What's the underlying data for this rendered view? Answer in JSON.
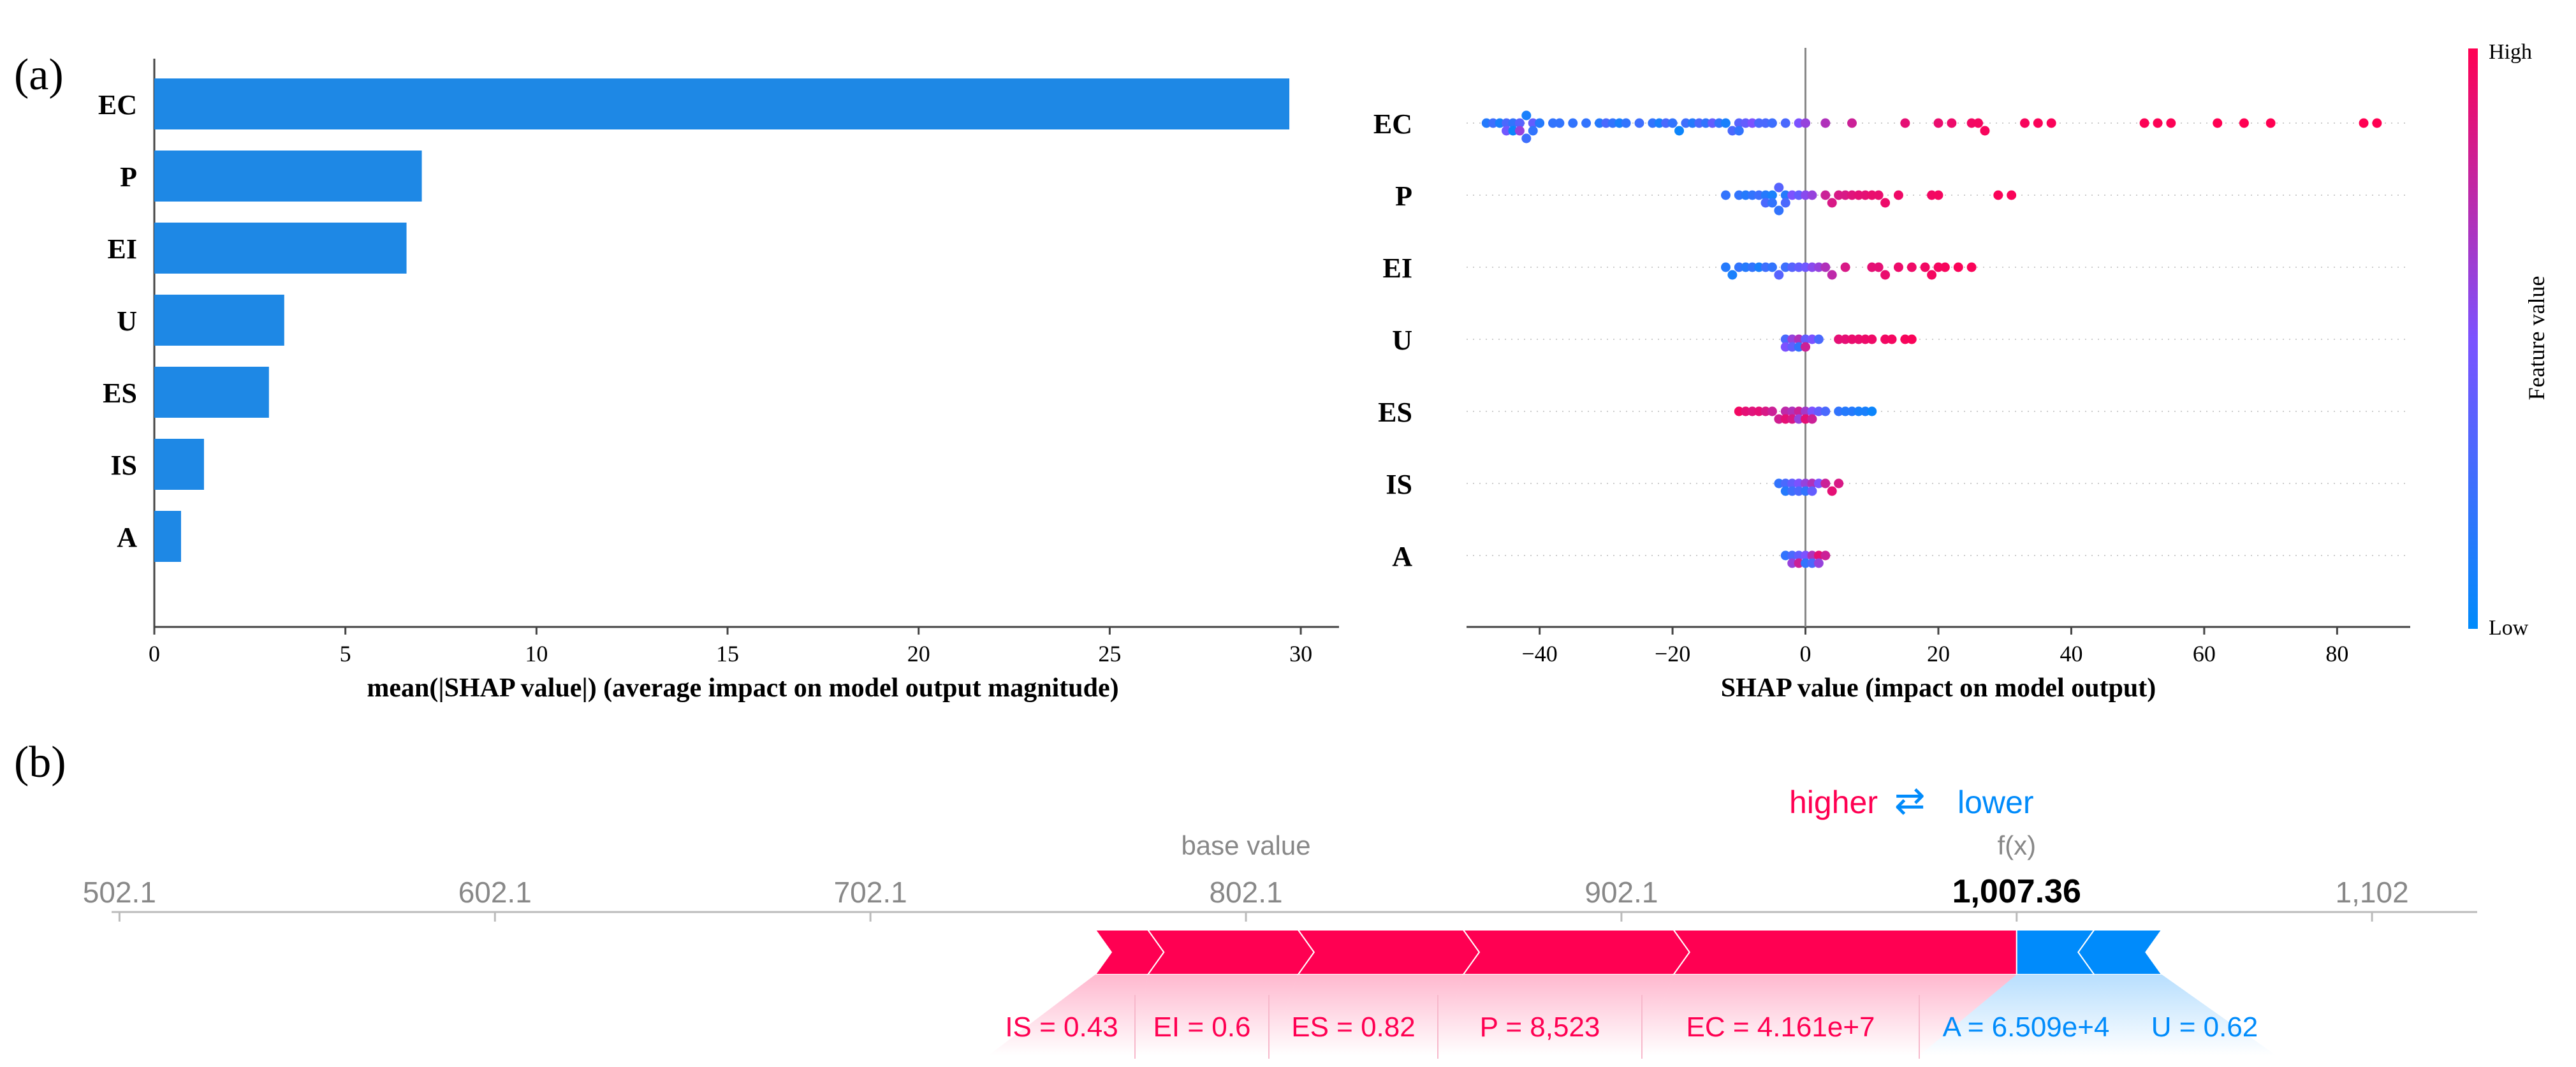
{
  "colors": {
    "bar": "#1e88e5",
    "high": "#ff0052",
    "low": "#008bfb",
    "mid": "#7c52ff"
  },
  "panel_a": {
    "label": "(a)"
  },
  "panel_b": {
    "label": "(b)"
  },
  "chart_data": [
    {
      "type": "bar",
      "orientation": "horizontal",
      "title": "",
      "categories": [
        "EC",
        "P",
        "EI",
        "U",
        "ES",
        "IS",
        "A"
      ],
      "values": [
        29.7,
        7.0,
        6.6,
        3.4,
        3.0,
        1.3,
        0.7
      ],
      "xlabel": "mean(|SHAP value|) (average impact on model output magnitude)",
      "ylabel": "",
      "xlim": [
        0,
        31
      ],
      "xticks": [
        0,
        5,
        10,
        15,
        20,
        25,
        30
      ]
    },
    {
      "type": "scatter",
      "subtype": "beeswarm",
      "xlabel": "SHAP value (impact on model output)",
      "colorbar": {
        "label": "Feature value",
        "high": "High",
        "low": "Low"
      },
      "xlim": [
        -51,
        91
      ],
      "xticks": [
        -40,
        -20,
        0,
        20,
        40,
        60,
        80
      ],
      "xtick_labels": [
        "−40",
        "−20",
        "0",
        "20",
        "40",
        "60",
        "80"
      ],
      "series": [
        {
          "name": "EC",
          "points": [
            [
              -48,
              0.15
            ],
            [
              -47,
              0.25
            ],
            [
              -46,
              0.1
            ],
            [
              -45,
              0.3
            ],
            [
              -45,
              0.45
            ],
            [
              -44,
              0.2
            ],
            [
              -44,
              0.05
            ],
            [
              -43,
              0.35
            ],
            [
              -43,
              0.6
            ],
            [
              -42,
              0.1
            ],
            [
              -42,
              0.25
            ],
            [
              -41,
              0.4
            ],
            [
              -41,
              0.2
            ],
            [
              -40,
              0.15
            ],
            [
              -38,
              0.2
            ],
            [
              -37,
              0.2
            ],
            [
              -35,
              0.2
            ],
            [
              -33,
              0.2
            ],
            [
              -31,
              0.15
            ],
            [
              -30,
              0.3
            ],
            [
              -29,
              0.2
            ],
            [
              -28,
              0.1
            ],
            [
              -27,
              0.2
            ],
            [
              -25,
              0.25
            ],
            [
              -23,
              0.2
            ],
            [
              -22,
              0.1
            ],
            [
              -21,
              0.3
            ],
            [
              -20,
              0.2
            ],
            [
              -19,
              0.05
            ],
            [
              -18,
              0.25
            ],
            [
              -17,
              0.15
            ],
            [
              -16,
              0.3
            ],
            [
              -15,
              0.2
            ],
            [
              -14,
              0.4
            ],
            [
              -13,
              0.2
            ],
            [
              -12,
              0.1
            ],
            [
              -11,
              0.3
            ],
            [
              -10,
              0.35
            ],
            [
              -10,
              0.2
            ],
            [
              -9,
              0.4
            ],
            [
              -8,
              0.5
            ],
            [
              -7,
              0.3
            ],
            [
              -6,
              0.3
            ],
            [
              -5,
              0.25
            ],
            [
              -3,
              0.3
            ],
            [
              -1,
              0.5
            ],
            [
              0,
              0.6
            ],
            [
              3,
              0.7
            ],
            [
              7,
              0.8
            ],
            [
              15,
              0.9
            ],
            [
              20,
              0.92
            ],
            [
              22,
              0.93
            ],
            [
              25,
              0.95
            ],
            [
              26,
              0.96
            ],
            [
              27,
              0.97
            ],
            [
              33,
              0.97
            ],
            [
              35,
              0.98
            ],
            [
              37,
              0.98
            ],
            [
              51,
              0.99
            ],
            [
              53,
              0.99
            ],
            [
              55,
              0.99
            ],
            [
              62,
              1.0
            ],
            [
              66,
              1.0
            ],
            [
              70,
              1.0
            ],
            [
              84,
              1.0
            ],
            [
              86,
              1.0
            ]
          ]
        },
        {
          "name": "P",
          "points": [
            [
              -12,
              0.2
            ],
            [
              -10,
              0.2
            ],
            [
              -9,
              0.15
            ],
            [
              -8,
              0.2
            ],
            [
              -7,
              0.25
            ],
            [
              -6,
              0.15
            ],
            [
              -6,
              0.3
            ],
            [
              -5,
              0.1
            ],
            [
              -5,
              0.2
            ],
            [
              -4,
              0.35
            ],
            [
              -4,
              0.2
            ],
            [
              -3,
              0.15
            ],
            [
              -3,
              0.3
            ],
            [
              -2,
              0.5
            ],
            [
              -1,
              0.4
            ],
            [
              0,
              0.55
            ],
            [
              1,
              0.6
            ],
            [
              3,
              0.8
            ],
            [
              4,
              0.85
            ],
            [
              5,
              0.85
            ],
            [
              6,
              0.85
            ],
            [
              7,
              0.88
            ],
            [
              8,
              0.9
            ],
            [
              9,
              0.9
            ],
            [
              10,
              0.92
            ],
            [
              11,
              0.92
            ],
            [
              12,
              0.93
            ],
            [
              14,
              0.94
            ],
            [
              19,
              0.95
            ],
            [
              20,
              0.96
            ],
            [
              29,
              0.98
            ],
            [
              31,
              0.98
            ]
          ]
        },
        {
          "name": "EI",
          "points": [
            [
              -12,
              0.15
            ],
            [
              -11,
              0.1
            ],
            [
              -10,
              0.2
            ],
            [
              -9,
              0.15
            ],
            [
              -8,
              0.2
            ],
            [
              -7,
              0.1
            ],
            [
              -6,
              0.25
            ],
            [
              -5,
              0.2
            ],
            [
              -4,
              0.35
            ],
            [
              -3,
              0.25
            ],
            [
              -2,
              0.35
            ],
            [
              -1,
              0.4
            ],
            [
              0,
              0.45
            ],
            [
              1,
              0.55
            ],
            [
              2,
              0.6
            ],
            [
              3,
              0.7
            ],
            [
              4,
              0.75
            ],
            [
              6,
              0.85
            ],
            [
              10,
              0.9
            ],
            [
              11,
              0.9
            ],
            [
              12,
              0.92
            ],
            [
              14,
              0.93
            ],
            [
              16,
              0.94
            ],
            [
              18,
              0.95
            ],
            [
              19,
              0.96
            ],
            [
              20,
              0.96
            ],
            [
              21,
              0.97
            ],
            [
              23,
              0.98
            ],
            [
              25,
              0.98
            ]
          ]
        },
        {
          "name": "U",
          "points": [
            [
              -3,
              0.3
            ],
            [
              -3,
              0.5
            ],
            [
              -2,
              0.6
            ],
            [
              -2,
              0.4
            ],
            [
              -1,
              0.7
            ],
            [
              -1,
              0.2
            ],
            [
              0,
              0.4
            ],
            [
              0,
              0.8
            ],
            [
              1,
              0.5
            ],
            [
              2,
              0.3
            ],
            [
              5,
              0.9
            ],
            [
              6,
              0.9
            ],
            [
              7,
              0.92
            ],
            [
              8,
              0.92
            ],
            [
              9,
              0.93
            ],
            [
              10,
              0.94
            ],
            [
              12,
              0.95
            ],
            [
              13,
              0.96
            ],
            [
              15,
              0.97
            ],
            [
              16,
              0.98
            ]
          ]
        },
        {
          "name": "ES",
          "points": [
            [
              -10,
              0.95
            ],
            [
              -9,
              0.9
            ],
            [
              -8,
              0.88
            ],
            [
              -7,
              0.9
            ],
            [
              -6,
              0.85
            ],
            [
              -5,
              0.8
            ],
            [
              -4,
              0.82
            ],
            [
              -3,
              0.75
            ],
            [
              -3,
              0.9
            ],
            [
              -2,
              0.7
            ],
            [
              -2,
              0.85
            ],
            [
              -1,
              0.8
            ],
            [
              -1,
              0.6
            ],
            [
              0,
              0.65
            ],
            [
              0,
              0.9
            ],
            [
              1,
              0.5
            ],
            [
              1,
              0.8
            ],
            [
              2,
              0.4
            ],
            [
              3,
              0.3
            ],
            [
              5,
              0.2
            ],
            [
              6,
              0.15
            ],
            [
              7,
              0.15
            ],
            [
              8,
              0.1
            ],
            [
              9,
              0.1
            ],
            [
              10,
              0.05
            ]
          ]
        },
        {
          "name": "IS",
          "points": [
            [
              -4,
              0.2
            ],
            [
              -3,
              0.3
            ],
            [
              -3,
              0.15
            ],
            [
              -2,
              0.4
            ],
            [
              -2,
              0.25
            ],
            [
              -1,
              0.5
            ],
            [
              -1,
              0.3
            ],
            [
              0,
              0.6
            ],
            [
              0,
              0.2
            ],
            [
              1,
              0.7
            ],
            [
              1,
              0.4
            ],
            [
              2,
              0.5
            ],
            [
              3,
              0.8
            ],
            [
              4,
              0.9
            ],
            [
              5,
              0.85
            ]
          ]
        },
        {
          "name": "A",
          "points": [
            [
              -3,
              0.2
            ],
            [
              -2,
              0.3
            ],
            [
              -2,
              0.6
            ],
            [
              -1,
              0.4
            ],
            [
              -1,
              0.8
            ],
            [
              0,
              0.5
            ],
            [
              0,
              0.2
            ],
            [
              1,
              0.7
            ],
            [
              1,
              0.3
            ],
            [
              2,
              0.9
            ],
            [
              2,
              0.6
            ],
            [
              3,
              0.8
            ]
          ]
        }
      ]
    },
    {
      "type": "force",
      "xlim": [
        500,
        1130
      ],
      "xticks": [
        502.1,
        602.1,
        702.1,
        802.1,
        902.1,
        1007.36,
        1102
      ],
      "xtick_labels": [
        "502.1",
        "602.1",
        "702.1",
        "802.1",
        "902.1",
        "1,007.36",
        "1,102"
      ],
      "bold_tick": "1,007.36",
      "base_value": 802.1,
      "base_value_label": "base value",
      "fx": 1007.36,
      "fx_label": "f(x)",
      "legend_higher": "higher",
      "legend_arrows": "⇄",
      "legend_lower": "lower",
      "positive": [
        {
          "label": "IS = 0.43",
          "start": 762,
          "end": 776
        },
        {
          "label": "EI = 0.6",
          "start": 776,
          "end": 816
        },
        {
          "label": "ES = 0.82",
          "start": 816,
          "end": 860
        },
        {
          "label": "P = 8,523",
          "start": 860,
          "end": 916
        },
        {
          "label": "EC = 4.161e+7",
          "start": 916,
          "end": 1007.36
        }
      ],
      "negative": [
        {
          "label": "A = 6.509e+4",
          "start": 1007.36,
          "end": 1028
        },
        {
          "label": "U = 0.62",
          "start": 1028,
          "end": 1046
        }
      ]
    }
  ]
}
